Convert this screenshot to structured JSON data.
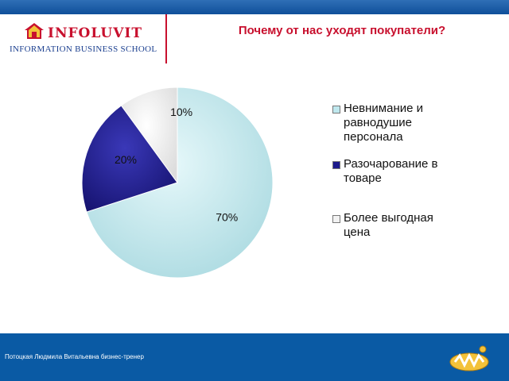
{
  "header": {
    "logo_name": "INFOLUVIT",
    "logo_subtitle": "INFORMATION BUSINESS SCHOOL",
    "title": "Почему от нас уходят покупатели?"
  },
  "footer": {
    "author": "Потоцкая Людмила Витальевна бизнес-тренер"
  },
  "chart_data": {
    "type": "pie",
    "title": "Почему от нас уходят покупатели?",
    "slices": [
      {
        "label": "Невнимание и равнодушие персонала",
        "legend_lines": [
          "Невнимание и",
          "равнодушие",
          "персонала"
        ],
        "value": 70,
        "value_label": "70%",
        "color": "#bfe8ee"
      },
      {
        "label": "Разочарование в товаре",
        "legend_lines": [
          "Разочарование в",
          "товаре"
        ],
        "value": 20,
        "value_label": "20%",
        "color": "#1d1a8c"
      },
      {
        "label": "Более выгодная цена",
        "legend_lines": [
          "Более выгодная",
          "цена"
        ],
        "value": 10,
        "value_label": "10%",
        "color": "#f2f2f2"
      }
    ],
    "legend_position": "right"
  }
}
